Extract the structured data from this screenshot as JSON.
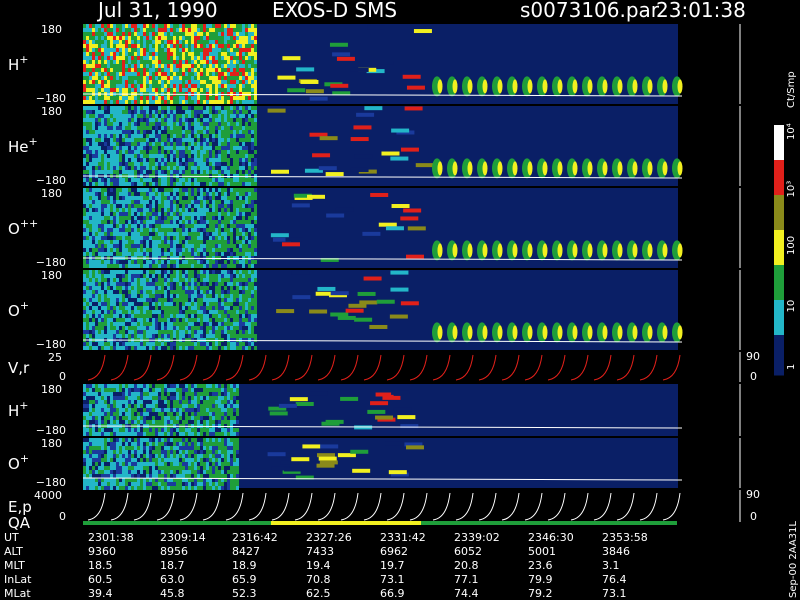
{
  "chart_data": {
    "type": "heatmap",
    "header": {
      "date": "Jul 31, 1990",
      "instrument": "EXOS-D SMS",
      "file": "s0073106.par",
      "time": "23:01:38"
    },
    "panels": [
      {
        "label": "H",
        "sup": "+",
        "ytop": "180",
        "ybot": "−180",
        "kind": "spin"
      },
      {
        "label": "He",
        "sup": "+",
        "ytop": "180",
        "ybot": "−180",
        "kind": "spin"
      },
      {
        "label": "O",
        "sup": "++",
        "ytop": "180",
        "ybot": "−180",
        "kind": "spin"
      },
      {
        "label": "O",
        "sup": "+",
        "ytop": "180",
        "ybot": "−180",
        "kind": "spin"
      },
      {
        "label": "V,r",
        "sup": "",
        "ytop": "25",
        "ybot": "0",
        "rtop": "90",
        "rbot": "0",
        "kind": "line"
      },
      {
        "label": "H",
        "sup": "+",
        "ytop": "180",
        "ybot": "−180",
        "kind": "spin2"
      },
      {
        "label": "O",
        "sup": "+",
        "ytop": "180",
        "ybot": "−180",
        "kind": "spin2"
      },
      {
        "label": "E,p",
        "label2": "QA",
        "sup": "",
        "ytop": "4000",
        "ybot": "0",
        "rtop": "90",
        "rbot": "0",
        "kind": "line2"
      }
    ],
    "colorbar": {
      "unit": "Ct/Smp",
      "labels": [
        "10⁴",
        "10³",
        "100",
        "10",
        "1"
      ]
    },
    "x_axis": {
      "rows": [
        {
          "name": "UT",
          "values": [
            "2301:38",
            "2309:14",
            "2316:42",
            "2327:26",
            "2331:42",
            "2339:02",
            "2346:30",
            "2353:58"
          ]
        },
        {
          "name": "ALT",
          "values": [
            "9360",
            "8956",
            "8427",
            "7433",
            "6962",
            "6052",
            "5001",
            "3846"
          ]
        },
        {
          "name": "MLT",
          "values": [
            "18.5",
            "18.7",
            "18.9",
            "19.4",
            "19.7",
            "20.8",
            "23.6",
            "3.1"
          ]
        },
        {
          "name": "InLat",
          "values": [
            "60.5",
            "63.0",
            "65.9",
            "70.8",
            "73.1",
            "77.1",
            "79.9",
            "76.4"
          ]
        },
        {
          "name": "MLat",
          "values": [
            "39.4",
            "45.8",
            "52.3",
            "62.5",
            "66.9",
            "74.4",
            "79.2",
            "73.1"
          ]
        }
      ]
    },
    "footer_vertical": "Sep-00  2AA31L",
    "colors": {
      "background": "#000000",
      "dark_blue": "#1a3a9c",
      "navy": "#0a1f66",
      "green": "#1f9e3a",
      "yellow": "#f2f020",
      "red": "#e0201a",
      "cyan": "#23b6c8",
      "olive": "#8a8a1a"
    }
  }
}
